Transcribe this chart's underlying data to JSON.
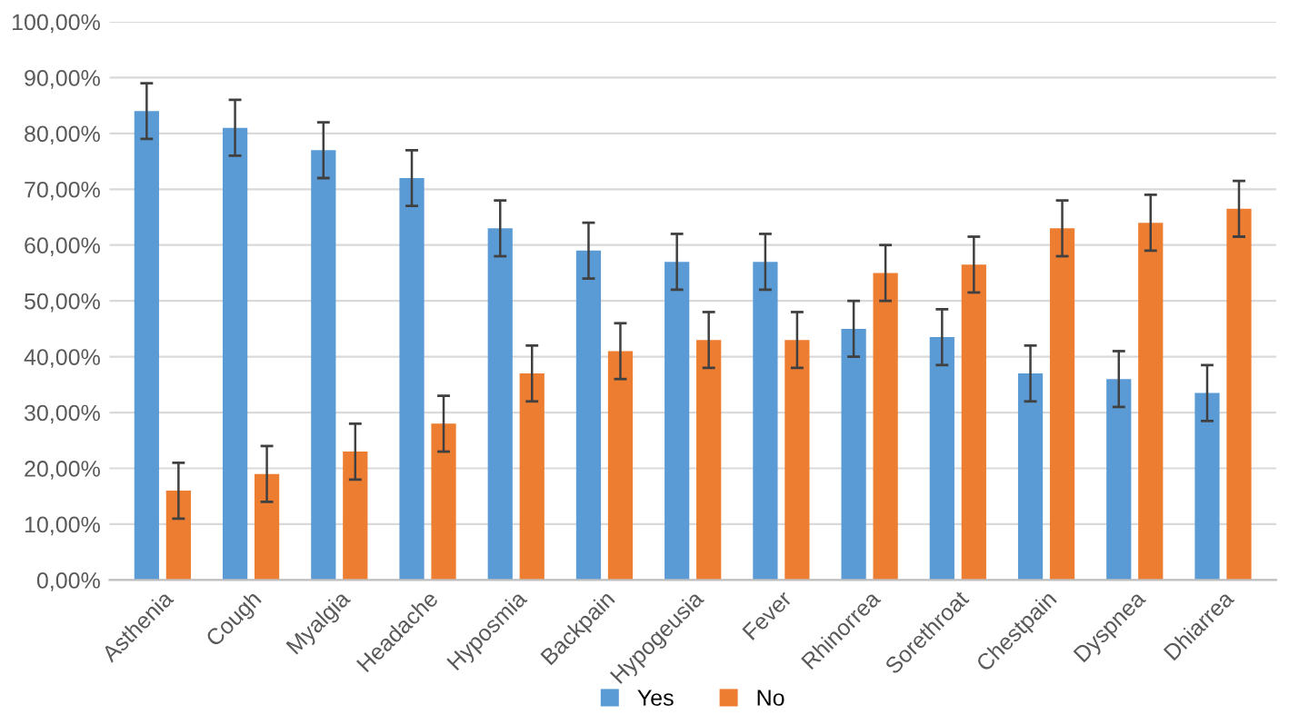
{
  "chart_data": {
    "type": "bar",
    "categories": [
      "Asthenia",
      "Cough",
      "Myalgia",
      "Headache",
      "Hyposmia",
      "Backpain",
      "Hypogeusia",
      "Fever",
      "Rhinorrea",
      "Sorethroat",
      "Chestpain",
      "Dyspnea",
      "Dhiarrea"
    ],
    "series": [
      {
        "name": "Yes",
        "color": "#5b9bd5",
        "values": [
          84,
          81,
          77,
          72,
          63,
          59,
          57,
          57,
          45,
          43.5,
          37,
          36,
          33.5
        ],
        "errors": [
          5,
          5,
          5,
          5,
          5,
          5,
          5,
          5,
          5,
          5,
          5,
          5,
          5
        ]
      },
      {
        "name": "No",
        "color": "#ed7d31",
        "values": [
          16,
          19,
          23,
          28,
          37,
          41,
          43,
          43,
          55,
          56.5,
          63,
          64,
          66.5
        ],
        "errors": [
          5,
          5,
          5,
          5,
          5,
          5,
          5,
          5,
          5,
          5,
          5,
          5,
          5
        ]
      }
    ],
    "ylim": [
      0,
      100
    ],
    "yticks": [
      {
        "value": 0,
        "label": "0,00%"
      },
      {
        "value": 10,
        "label": "10,00%"
      },
      {
        "value": 20,
        "label": "20,00%"
      },
      {
        "value": 30,
        "label": "30,00%"
      },
      {
        "value": 40,
        "label": "40,00%"
      },
      {
        "value": 50,
        "label": "50,00%"
      },
      {
        "value": 60,
        "label": "60,00%"
      },
      {
        "value": 70,
        "label": "70,00%"
      },
      {
        "value": 80,
        "label": "80,00%"
      },
      {
        "value": 90,
        "label": "90,00%"
      },
      {
        "value": 100,
        "label": "100,00%"
      }
    ],
    "grid": "y",
    "legend": "bottom"
  }
}
